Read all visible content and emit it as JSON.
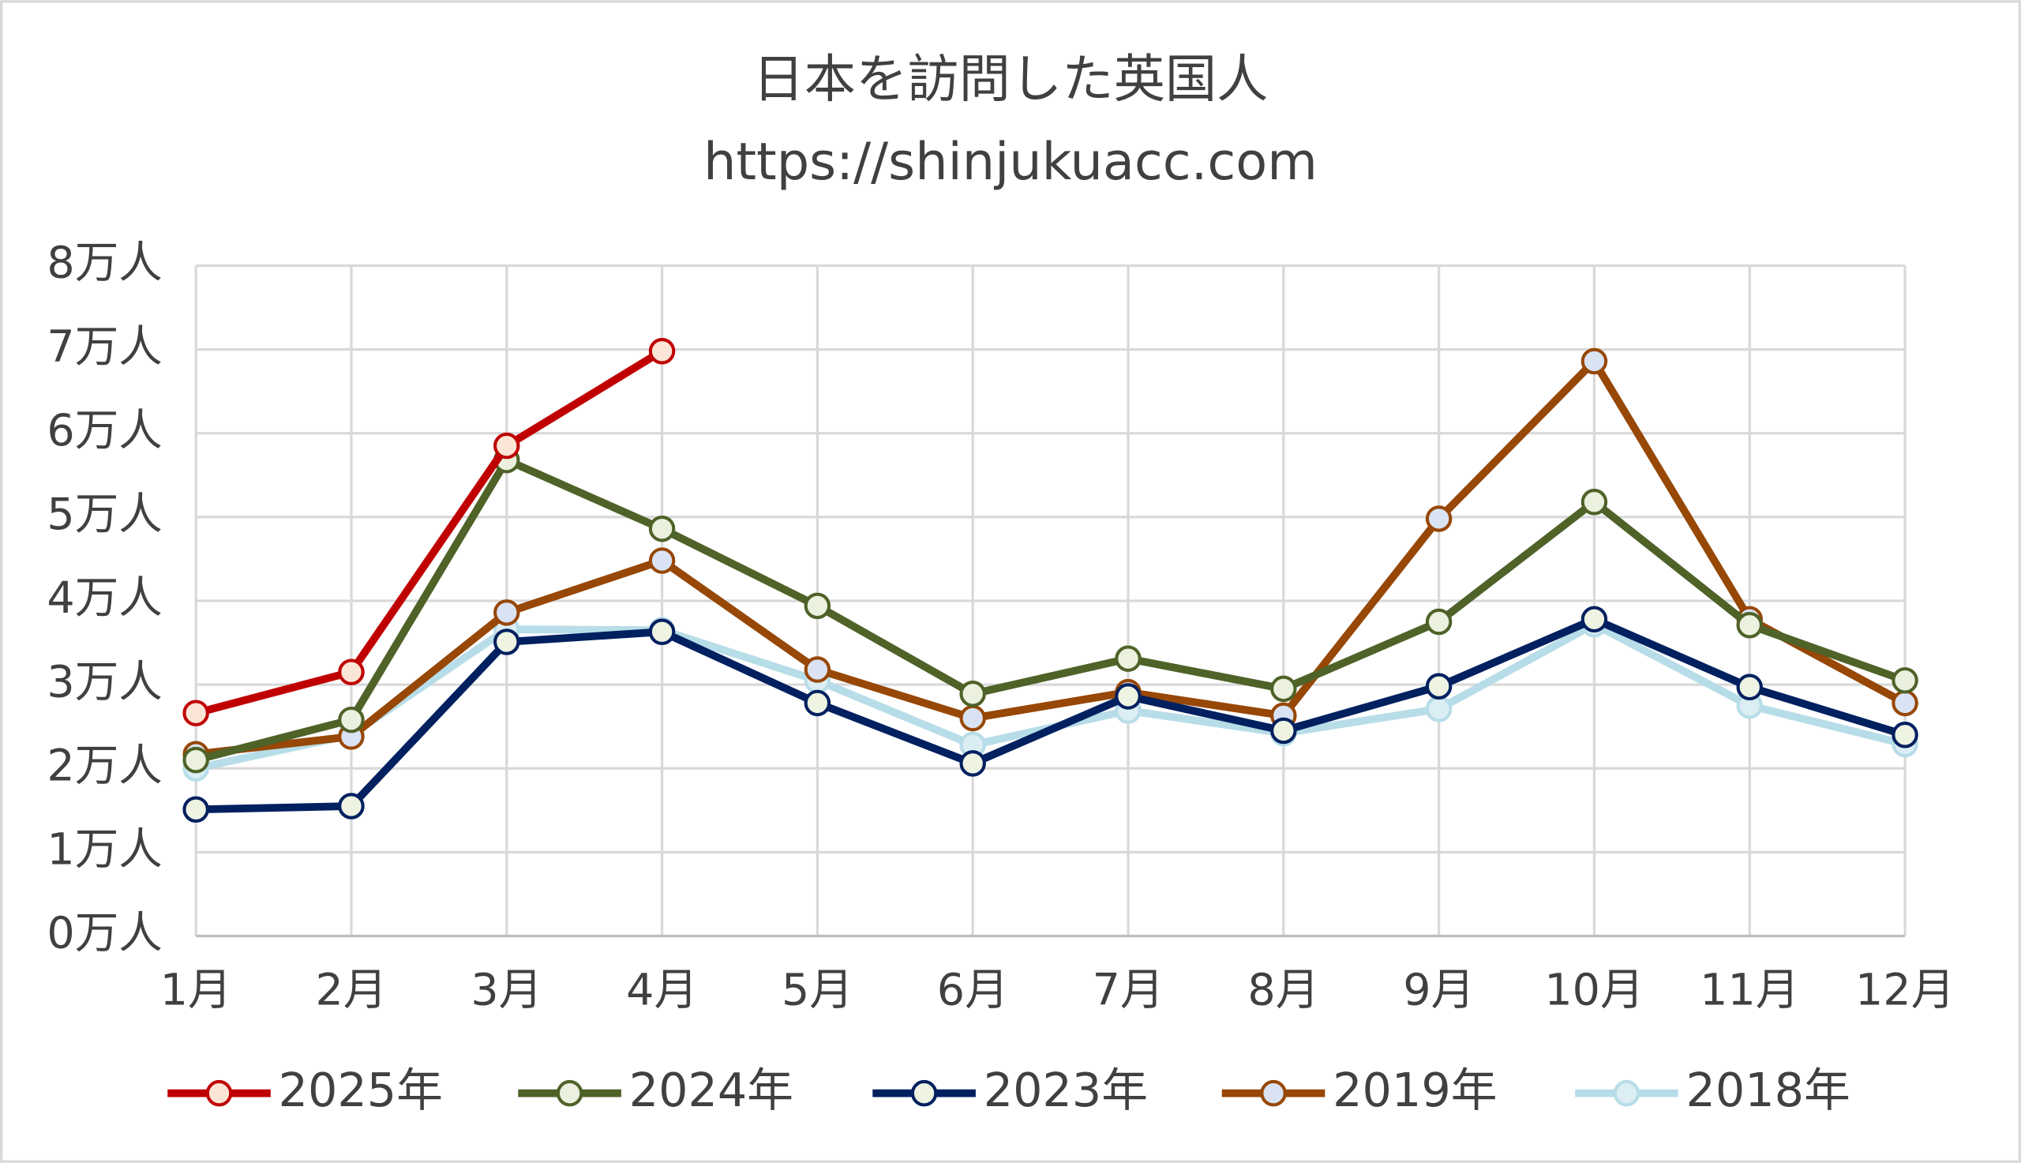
{
  "chart_data": {
    "type": "line",
    "title": "日本を訪問した英国人",
    "subtitle": "https://shinjukuacc.com",
    "categories": [
      "1月",
      "2月",
      "3月",
      "4月",
      "5月",
      "6月",
      "7月",
      "8月",
      "9月",
      "10月",
      "11月",
      "12月"
    ],
    "ylim": [
      0,
      8
    ],
    "yticks": [
      {
        "value": 0,
        "label": "0万人"
      },
      {
        "value": 1,
        "label": "1万人"
      },
      {
        "value": 2,
        "label": "2万人"
      },
      {
        "value": 3,
        "label": "3万人"
      },
      {
        "value": 4,
        "label": "4万人"
      },
      {
        "value": 5,
        "label": "5万人"
      },
      {
        "value": 6,
        "label": "6万人"
      },
      {
        "value": 7,
        "label": "7万人"
      },
      {
        "value": 8,
        "label": "8万人"
      }
    ],
    "grid": true,
    "legend": "bottom",
    "series": [
      {
        "name": "2025年",
        "color": "#c00000",
        "marker_color": "#fbe5d6",
        "values": [
          2.66,
          3.15,
          5.85,
          6.98,
          null,
          null,
          null,
          null,
          null,
          null,
          null,
          null
        ]
      },
      {
        "name": "2024年",
        "color": "#4f6228",
        "marker_color": "#ebf1de",
        "values": [
          2.1,
          2.58,
          5.68,
          4.86,
          3.94,
          2.89,
          3.31,
          2.95,
          3.75,
          5.18,
          3.71,
          3.05
        ]
      },
      {
        "name": "2023年",
        "color": "#002060",
        "marker_color": "#eef3e2",
        "values": [
          1.51,
          1.55,
          3.51,
          3.63,
          2.78,
          2.06,
          2.86,
          2.45,
          2.98,
          3.78,
          2.97,
          2.4
        ]
      },
      {
        "name": "2019年",
        "color": "#974706",
        "marker_color": "#dae3f3",
        "values": [
          2.17,
          2.38,
          3.86,
          4.48,
          3.18,
          2.6,
          2.91,
          2.63,
          4.98,
          6.86,
          3.78,
          2.78
        ]
      },
      {
        "name": "2018年",
        "color": "#b7dde8",
        "marker_color": "#dbeef4",
        "values": [
          2.0,
          2.4,
          3.66,
          3.65,
          3.05,
          2.28,
          2.69,
          2.42,
          2.71,
          3.72,
          2.75,
          2.29
        ]
      }
    ]
  }
}
